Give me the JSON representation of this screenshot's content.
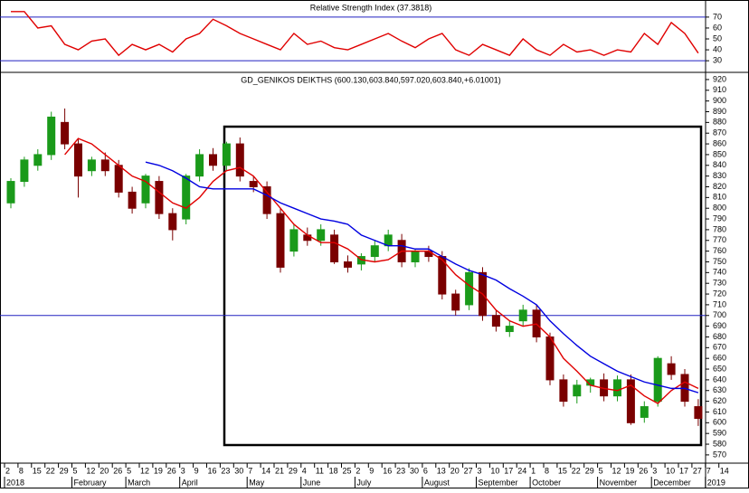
{
  "chart_data": [
    {
      "type": "line",
      "title": "Relative Strength Index (37.3818)",
      "categories": [
        "2",
        "8",
        "15",
        "22",
        "29",
        "5",
        "12",
        "20",
        "26",
        "5",
        "12",
        "19",
        "26",
        "3",
        "9",
        "16",
        "23",
        "30",
        "7",
        "14",
        "21",
        "29",
        "4",
        "11",
        "18",
        "25",
        "2",
        "9",
        "16",
        "23",
        "30",
        "6",
        "13",
        "20",
        "27",
        "3",
        "10",
        "17",
        "24",
        "1",
        "8",
        "15",
        "22",
        "29",
        "5",
        "12",
        "19",
        "26",
        "3",
        "10",
        "17",
        "27",
        "7",
        "14"
      ],
      "series": [
        {
          "color": "#e00000",
          "values": [
            75,
            75,
            60,
            62,
            45,
            40,
            48,
            50,
            35,
            45,
            40,
            45,
            38,
            50,
            55,
            68,
            62,
            55,
            50,
            45,
            40,
            55,
            45,
            48,
            42,
            40,
            45,
            50,
            55,
            48,
            42,
            50,
            55,
            40,
            35,
            45,
            40,
            35,
            50,
            40,
            35,
            45,
            38,
            40,
            35,
            40,
            38,
            55,
            45,
            65,
            55,
            37,
            null,
            null
          ]
        }
      ],
      "ylim": [
        21,
        84
      ],
      "yticks": [
        70,
        60,
        50,
        40,
        30
      ],
      "hlines": [
        70,
        30
      ],
      "hline_color": "#2020c0"
    },
    {
      "type": "candlestick",
      "title": "GD_GENIKOS DEIKTHS (600.130,603.840,597.020,603.840,+6.01001)",
      "months": [
        "2018",
        "February",
        "March",
        "April",
        "May",
        "June",
        "July",
        "August",
        "September",
        "October",
        "November",
        "December",
        "2019"
      ],
      "open": [
        805,
        825,
        840,
        850,
        880,
        860,
        835,
        845,
        840,
        815,
        805,
        825,
        795,
        790,
        830,
        850,
        840,
        860,
        825,
        820,
        795,
        760,
        775,
        770,
        775,
        750,
        748,
        755,
        765,
        770,
        750,
        760,
        755,
        720,
        710,
        740,
        700,
        685,
        695,
        705,
        680,
        640,
        625,
        635,
        640,
        625,
        640,
        605,
        620,
        655,
        645,
        615,
        null,
        null
      ],
      "high": [
        828,
        848,
        855,
        890,
        893,
        865,
        848,
        852,
        845,
        820,
        832,
        830,
        800,
        832,
        855,
        856,
        862,
        866,
        830,
        825,
        800,
        785,
        782,
        785,
        780,
        756,
        758,
        770,
        780,
        776,
        762,
        765,
        760,
        724,
        744,
        745,
        705,
        695,
        710,
        710,
        684,
        645,
        640,
        642,
        646,
        644,
        645,
        620,
        662,
        662,
        650,
        622,
        null,
        null
      ],
      "low": [
        800,
        820,
        835,
        845,
        855,
        810,
        830,
        830,
        810,
        795,
        800,
        790,
        770,
        785,
        825,
        835,
        835,
        825,
        815,
        790,
        740,
        755,
        765,
        765,
        748,
        740,
        742,
        750,
        760,
        745,
        745,
        750,
        715,
        700,
        705,
        695,
        685,
        680,
        690,
        675,
        635,
        615,
        618,
        628,
        620,
        620,
        598,
        600,
        615,
        640,
        615,
        597,
        null,
        null
      ],
      "close": [
        825,
        845,
        850,
        885,
        860,
        830,
        845,
        835,
        815,
        800,
        830,
        795,
        780,
        830,
        850,
        840,
        860,
        830,
        820,
        795,
        745,
        780,
        770,
        780,
        750,
        745,
        755,
        765,
        775,
        750,
        760,
        755,
        720,
        705,
        740,
        700,
        690,
        690,
        705,
        680,
        640,
        620,
        635,
        640,
        625,
        640,
        600,
        615,
        660,
        645,
        620,
        604,
        null,
        null
      ],
      "up_color": "#1a9a1a",
      "down_color": "#7a0000",
      "series": [
        {
          "color": "#e00000",
          "values": [
            null,
            null,
            null,
            null,
            850,
            865,
            860,
            850,
            840,
            830,
            825,
            815,
            805,
            800,
            810,
            825,
            835,
            838,
            830,
            815,
            800,
            785,
            775,
            768,
            768,
            762,
            752,
            750,
            752,
            760,
            760,
            760,
            752,
            738,
            728,
            720,
            705,
            695,
            690,
            692,
            680,
            660,
            648,
            635,
            632,
            630,
            635,
            625,
            618,
            630,
            638,
            632,
            null,
            null
          ]
        },
        {
          "color": "#0000e0",
          "values": [
            null,
            null,
            null,
            null,
            null,
            null,
            null,
            null,
            null,
            null,
            843,
            840,
            835,
            828,
            820,
            818,
            818,
            818,
            818,
            812,
            805,
            800,
            795,
            790,
            788,
            785,
            775,
            770,
            765,
            765,
            762,
            762,
            755,
            748,
            742,
            738,
            733,
            725,
            718,
            710,
            695,
            683,
            672,
            662,
            655,
            648,
            643,
            638,
            635,
            632,
            632,
            628,
            null,
            null
          ]
        }
      ],
      "ylim": [
        564,
        925
      ],
      "yticks": [
        570,
        580,
        590,
        600,
        610,
        620,
        630,
        640,
        650,
        660,
        670,
        680,
        690,
        700,
        710,
        720,
        730,
        740,
        750,
        760,
        770,
        780,
        790,
        800,
        810,
        820,
        830,
        840,
        850,
        860,
        870,
        880,
        890,
        900,
        910,
        920
      ],
      "hlines": [
        700
      ],
      "hline_color": "#2020c0"
    }
  ]
}
